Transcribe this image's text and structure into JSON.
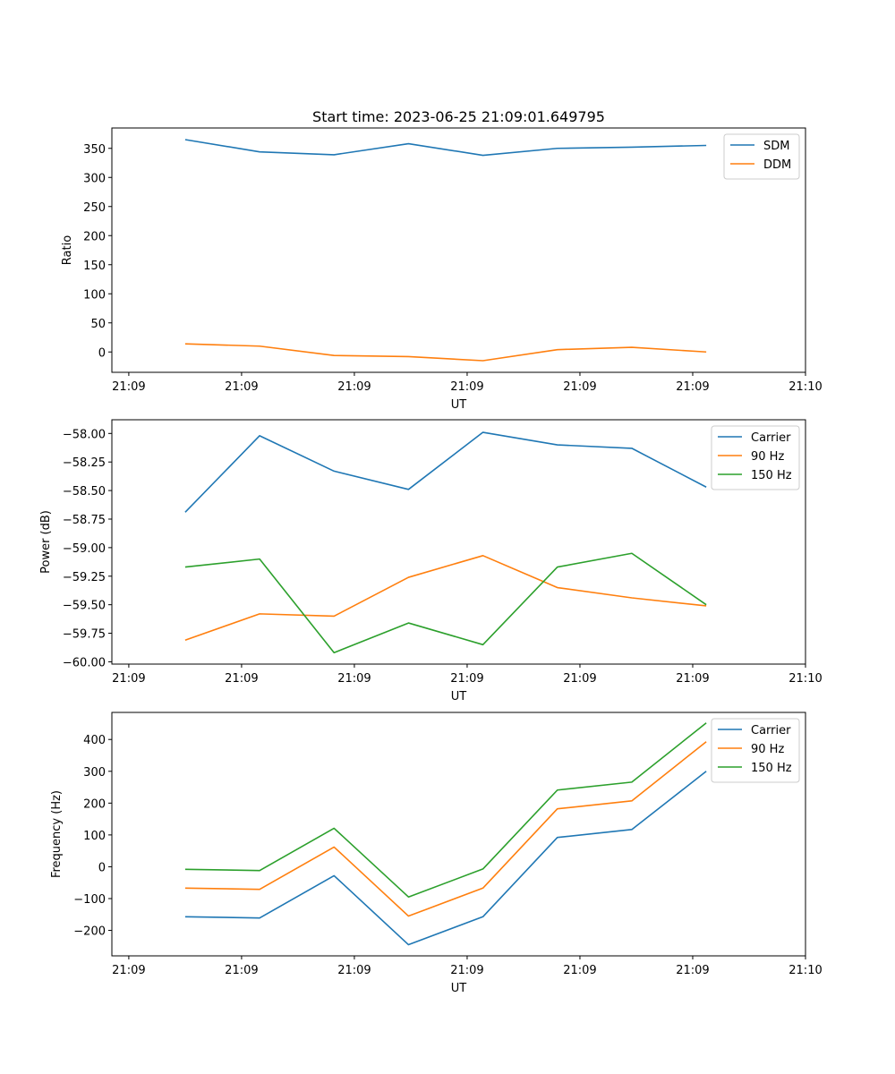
{
  "figure": {
    "background": "#ffffff"
  },
  "chart_data": [
    {
      "type": "line",
      "title": "Start time: 2023-06-25 21:09:01.649795",
      "xlabel": "UT",
      "ylabel": "Ratio",
      "x": [
        0.5,
        1.16,
        1.82,
        2.48,
        3.14,
        3.8,
        4.46,
        5.12
      ],
      "xlim": [
        -0.15,
        6.0
      ],
      "xticks": [
        0,
        1,
        2,
        3,
        4,
        5,
        6
      ],
      "xtick_labels": [
        "21:09",
        "21:09",
        "21:09",
        "21:09",
        "21:09",
        "21:09",
        "21:10"
      ],
      "ylim": [
        -35,
        385
      ],
      "yticks": [
        0,
        50,
        100,
        150,
        200,
        250,
        300,
        350
      ],
      "ytick_labels": [
        "0",
        "50",
        "100",
        "150",
        "200",
        "250",
        "300",
        "350"
      ],
      "legend": "upper-right",
      "grid": false,
      "series": [
        {
          "name": "SDM",
          "color": "#1f77b4",
          "values": [
            365,
            344,
            339,
            358,
            338,
            350,
            352,
            355
          ]
        },
        {
          "name": "DDM",
          "color": "#ff7f0e",
          "values": [
            14,
            10,
            -6,
            -8,
            -15,
            4,
            8,
            0
          ]
        }
      ]
    },
    {
      "type": "line",
      "title": "",
      "xlabel": "UT",
      "ylabel": "Power (dB)",
      "x": [
        0.5,
        1.16,
        1.82,
        2.48,
        3.14,
        3.8,
        4.46,
        5.12
      ],
      "xlim": [
        -0.15,
        6.0
      ],
      "xticks": [
        0,
        1,
        2,
        3,
        4,
        5,
        6
      ],
      "xtick_labels": [
        "21:09",
        "21:09",
        "21:09",
        "21:09",
        "21:09",
        "21:09",
        "21:10"
      ],
      "ylim": [
        -60.02,
        -57.88
      ],
      "yticks": [
        -60.0,
        -59.75,
        -59.5,
        -59.25,
        -59.0,
        -58.75,
        -58.5,
        -58.25,
        -58.0
      ],
      "ytick_labels": [
        "−60.00",
        "−59.75",
        "−59.50",
        "−59.25",
        "−59.00",
        "−58.75",
        "−58.50",
        "−58.25",
        "−58.00"
      ],
      "legend": "upper-right",
      "grid": false,
      "series": [
        {
          "name": "Carrier",
          "color": "#1f77b4",
          "values": [
            -58.69,
            -58.02,
            -58.33,
            -58.49,
            -57.99,
            -58.1,
            -58.13,
            -58.47
          ]
        },
        {
          "name": "90 Hz",
          "color": "#ff7f0e",
          "values": [
            -59.81,
            -59.58,
            -59.6,
            -59.26,
            -59.07,
            -59.35,
            -59.44,
            -59.51
          ]
        },
        {
          "name": "150 Hz",
          "color": "#2ca02c",
          "values": [
            -59.17,
            -59.1,
            -59.92,
            -59.66,
            -59.85,
            -59.17,
            -59.05,
            -59.5
          ]
        }
      ]
    },
    {
      "type": "line",
      "title": "",
      "xlabel": "UT",
      "ylabel": "Frequency (Hz)",
      "x": [
        0.5,
        1.16,
        1.82,
        2.48,
        3.14,
        3.8,
        4.46,
        5.12
      ],
      "xlim": [
        -0.15,
        6.0
      ],
      "xticks": [
        0,
        1,
        2,
        3,
        4,
        5,
        6
      ],
      "xtick_labels": [
        "21:09",
        "21:09",
        "21:09",
        "21:09",
        "21:09",
        "21:09",
        "21:10"
      ],
      "ylim": [
        -280,
        485
      ],
      "yticks": [
        -200,
        -100,
        0,
        100,
        200,
        300,
        400
      ],
      "ytick_labels": [
        "−200",
        "−100",
        "0",
        "100",
        "200",
        "300",
        "400"
      ],
      "legend": "upper-right",
      "grid": false,
      "series": [
        {
          "name": "Carrier",
          "color": "#1f77b4",
          "values": [
            -157,
            -161,
            -28,
            -245,
            -157,
            92,
            117,
            300
          ]
        },
        {
          "name": "90 Hz",
          "color": "#ff7f0e",
          "values": [
            -67,
            -71,
            62,
            -155,
            -67,
            182,
            207,
            393
          ]
        },
        {
          "name": "150 Hz",
          "color": "#2ca02c",
          "values": [
            -8,
            -12,
            121,
            -95,
            -7,
            241,
            266,
            452
          ]
        }
      ]
    }
  ]
}
